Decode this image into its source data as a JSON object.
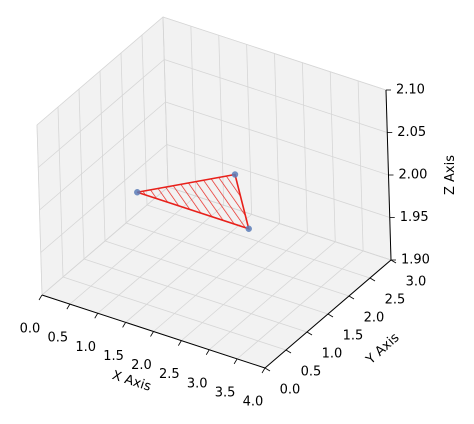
{
  "chart_data": {
    "type": "scatter3d",
    "x": [
      1,
      2,
      3
    ],
    "y": [
      1,
      2,
      1
    ],
    "z": [
      2,
      2,
      2
    ],
    "color": "#5b7db8",
    "polygon_color": "#e8201a",
    "xlabel": "X Axis",
    "ylabel": "Y Axis",
    "zlabel": "Z Axis",
    "xlim": [
      0,
      4
    ],
    "ylim": [
      0,
      3
    ],
    "zlim": [
      1.9,
      2.1
    ],
    "xticks": [
      {
        "value": 0,
        "label": "0.0"
      },
      {
        "value": 0.5,
        "label": "0.5"
      },
      {
        "value": 1,
        "label": "1.0"
      },
      {
        "value": 1.5,
        "label": "1.5"
      },
      {
        "value": 2,
        "label": "2.0"
      },
      {
        "value": 2.5,
        "label": "2.5"
      },
      {
        "value": 3,
        "label": "3.0"
      },
      {
        "value": 3.5,
        "label": "3.5"
      },
      {
        "value": 4,
        "label": "4.0"
      }
    ],
    "yticks": [
      {
        "value": 0,
        "label": "0.0"
      },
      {
        "value": 0.5,
        "label": "0.5"
      },
      {
        "value": 1,
        "label": "1.0"
      },
      {
        "value": 1.5,
        "label": "1.5"
      },
      {
        "value": 2,
        "label": "2.0"
      },
      {
        "value": 2.5,
        "label": "2.5"
      },
      {
        "value": 3,
        "label": "3.0"
      }
    ],
    "zticks": [
      {
        "value": 1.9,
        "label": "1.90"
      },
      {
        "value": 1.95,
        "label": "1.95"
      },
      {
        "value": 2,
        "label": "2.00"
      },
      {
        "value": 2.05,
        "label": "2.05"
      },
      {
        "value": 2.1,
        "label": "2.10"
      }
    ],
    "grid": true
  }
}
